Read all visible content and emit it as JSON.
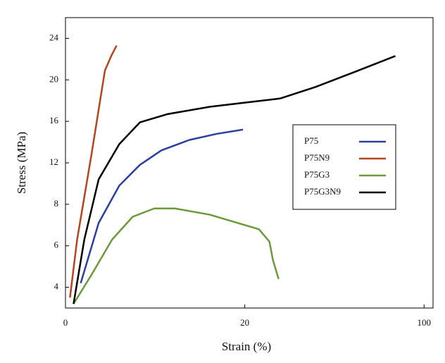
{
  "chart_data": {
    "type": "line",
    "x_label": "Strain (%)",
    "y_label": "Stress (MPa)",
    "xlim": [
      0,
      104
    ],
    "xticks": [
      0,
      20,
      100
    ],
    "ylim": [
      3,
      26
    ],
    "yticks": [
      4,
      6,
      8,
      12,
      16,
      20,
      24
    ],
    "legend": "right",
    "series": [
      {
        "name": "P75",
        "color": "#2b3fa0",
        "x": [
          1.7,
          3.7,
          6.0,
          8.3,
          10.7,
          13.8,
          16.9,
          19.8
        ],
        "values": [
          4.2,
          7.1,
          9.8,
          11.8,
          13.2,
          14.2,
          14.8,
          15.2
        ]
      },
      {
        "name": "P75N9",
        "color": "#b5441f",
        "x": [
          0.5,
          1.3,
          2.9,
          4.4,
          5.1,
          5.7
        ],
        "values": [
          3.5,
          6.3,
          12.8,
          20.9,
          22.3,
          23.3
        ]
      },
      {
        "name": "P75G3",
        "color": "#6a9a3a",
        "x": [
          0.9,
          2.9,
          5.2,
          7.5,
          9.9,
          12.2,
          16.1,
          19.2,
          26.3,
          31.0,
          32.6,
          35.1
        ],
        "values": [
          3.2,
          4.6,
          6.3,
          7.4,
          7.8,
          7.8,
          7.5,
          7.1,
          6.8,
          6.2,
          5.3,
          4.4
        ]
      },
      {
        "name": "P75G3N9",
        "color": "#000000",
        "x": [
          0.9,
          2.1,
          3.7,
          6.0,
          8.3,
          11.4,
          16.1,
          20.0,
          35.7,
          51.4,
          67.1,
          87.2
        ],
        "values": [
          3.2,
          6.3,
          10.4,
          13.8,
          15.9,
          16.7,
          17.4,
          17.8,
          18.2,
          19.3,
          20.6,
          22.3
        ]
      }
    ]
  }
}
